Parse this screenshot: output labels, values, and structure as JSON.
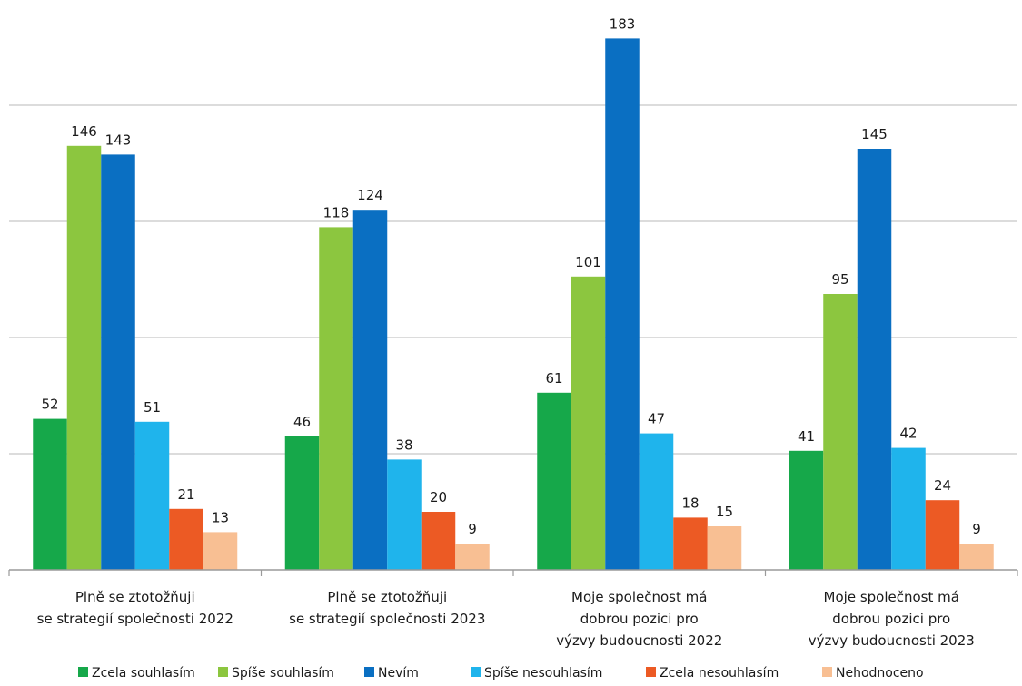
{
  "chart_data": {
    "type": "bar",
    "categories": [
      [
        "Plně se ztotožňuji",
        "se strategií společnosti 2022"
      ],
      [
        "Plně se ztotožňuji",
        "se strategií společnosti 2023"
      ],
      [
        "Moje společnost má",
        "dobrou pozici pro",
        "výzvy budoucnosti 2022"
      ],
      [
        "Moje společnost má",
        "dobrou pozici pro",
        "výzvy budoucnosti 2023"
      ]
    ],
    "series": [
      {
        "name": "Zcela souhlasím",
        "color": "#16a84a",
        "values": [
          52,
          46,
          61,
          41
        ]
      },
      {
        "name": "Spíše souhlasím",
        "color": "#8cc63f",
        "values": [
          146,
          118,
          101,
          95
        ]
      },
      {
        "name": "Nevím",
        "color": "#0a6fc2",
        "values": [
          143,
          124,
          183,
          145
        ]
      },
      {
        "name": "Spíše nesouhlasím",
        "color": "#1fb4ec",
        "values": [
          51,
          38,
          47,
          42
        ]
      },
      {
        "name": "Zcela nesouhlasím",
        "color": "#ec5a24",
        "values": [
          21,
          20,
          18,
          24
        ]
      },
      {
        "name": "Nehodnoceno",
        "color": "#f8bf93",
        "values": [
          13,
          9,
          15,
          9
        ]
      }
    ],
    "ylim": [
      0,
      200
    ],
    "grid": true,
    "legend_position": "bottom"
  }
}
